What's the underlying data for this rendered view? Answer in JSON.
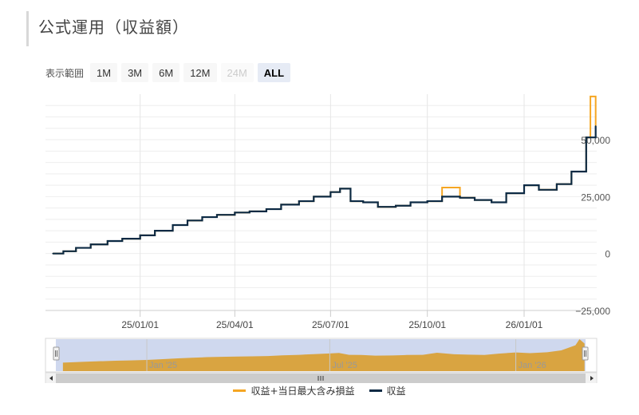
{
  "page": {
    "title": "公式運用（収益額）"
  },
  "range_selector": {
    "label": "表示範囲",
    "buttons": [
      {
        "label": "1M",
        "state": "normal"
      },
      {
        "label": "3M",
        "state": "normal"
      },
      {
        "label": "6M",
        "state": "normal"
      },
      {
        "label": "12M",
        "state": "normal"
      },
      {
        "label": "24M",
        "state": "disabled"
      },
      {
        "label": "ALL",
        "state": "active"
      }
    ]
  },
  "navigator": {
    "tick_labels": [
      "Jan '25",
      "Jul '25",
      "Jan '26"
    ]
  },
  "colors": {
    "profit_line": "#0c2a44",
    "max_intraday_line": "#f5a623",
    "navigator_fill": "#d9a441",
    "navigator_bg": "#cfd8ee"
  },
  "chart_data": {
    "type": "line",
    "title": "",
    "xlabel": "",
    "ylabel": "",
    "x_tick_labels": [
      "25/01/01",
      "25/04/01",
      "25/07/01",
      "25/10/01",
      "26/01/01"
    ],
    "y_tick_labels": [
      "−25,000",
      "0",
      "25,000",
      "50,000"
    ],
    "ylim": [
      -25000,
      70000
    ],
    "grid": true,
    "legend_position": "bottom-center",
    "series": [
      {
        "name": "収益",
        "x": [
          "2024-10-10",
          "2024-10-20",
          "2024-11-01",
          "2024-11-15",
          "2024-12-01",
          "2024-12-15",
          "2025-01-01",
          "2025-01-15",
          "2025-02-01",
          "2025-02-15",
          "2025-03-01",
          "2025-03-15",
          "2025-04-01",
          "2025-04-15",
          "2025-05-01",
          "2025-05-15",
          "2025-06-01",
          "2025-06-15",
          "2025-07-01",
          "2025-07-10",
          "2025-07-20",
          "2025-08-01",
          "2025-08-15",
          "2025-09-01",
          "2025-09-15",
          "2025-10-01",
          "2025-10-15",
          "2025-11-01",
          "2025-11-15",
          "2025-12-01",
          "2025-12-15",
          "2026-01-01",
          "2026-01-15",
          "2026-02-01",
          "2026-02-15",
          "2026-03-01",
          "2026-03-10"
        ],
        "values": [
          0,
          1000,
          2500,
          4000,
          5500,
          6500,
          8000,
          10000,
          12500,
          14500,
          16000,
          17000,
          18000,
          18500,
          19500,
          21500,
          23000,
          25000,
          27000,
          28500,
          23000,
          22500,
          20500,
          21000,
          22500,
          23000,
          25000,
          24500,
          23500,
          22500,
          26500,
          30000,
          28000,
          30500,
          36000,
          51000,
          56000
        ]
      },
      {
        "name": "収益+当日最大含み損益",
        "x": [
          "2024-10-10",
          "2024-10-20",
          "2024-11-01",
          "2024-11-15",
          "2024-12-01",
          "2024-12-15",
          "2025-01-01",
          "2025-01-15",
          "2025-02-01",
          "2025-02-15",
          "2025-03-01",
          "2025-03-15",
          "2025-04-01",
          "2025-04-15",
          "2025-05-01",
          "2025-05-15",
          "2025-06-01",
          "2025-06-15",
          "2025-07-01",
          "2025-07-10",
          "2025-07-20",
          "2025-08-01",
          "2025-08-15",
          "2025-09-01",
          "2025-09-15",
          "2025-10-01",
          "2025-10-15",
          "2025-11-01",
          "2025-11-15",
          "2025-12-01",
          "2025-12-15",
          "2026-01-01",
          "2026-01-15",
          "2026-02-01",
          "2026-02-15",
          "2026-03-01",
          "2026-03-05",
          "2026-03-10"
        ],
        "values": [
          0,
          1000,
          2500,
          4000,
          5500,
          6500,
          8000,
          10000,
          12500,
          14500,
          16000,
          17000,
          18000,
          18500,
          19500,
          21500,
          23000,
          25000,
          27000,
          28500,
          23000,
          22500,
          20500,
          21000,
          22500,
          23000,
          29000,
          24500,
          23500,
          22500,
          26500,
          30000,
          28000,
          30500,
          36000,
          51000,
          69000,
          56000
        ]
      }
    ]
  }
}
